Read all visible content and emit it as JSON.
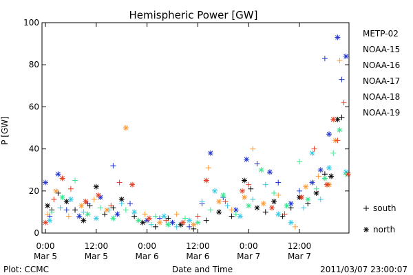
{
  "chart_data": {
    "type": "scatter",
    "title": "Hemispheric Power [GW]",
    "xlabel": "Date and Time",
    "ylabel": "P [GW]",
    "xlim_hours": [
      0,
      72
    ],
    "ylim": [
      0,
      100
    ],
    "y_ticks": [
      0,
      20,
      40,
      60,
      80,
      100
    ],
    "x_ticks": [
      {
        "hours": 0,
        "top": "0:00",
        "bottom": "Mar 5"
      },
      {
        "hours": 12,
        "top": "12:00",
        "bottom": "Mar 5"
      },
      {
        "hours": 24,
        "top": "0:00",
        "bottom": "Mar 6"
      },
      {
        "hours": 36,
        "top": "12:00",
        "bottom": "Mar 6"
      },
      {
        "hours": 48,
        "top": "0:00",
        "bottom": "Mar 7"
      },
      {
        "hours": 60,
        "top": "12:00",
        "bottom": "Mar 7"
      }
    ],
    "grid": false,
    "legend_position": "right",
    "marker_legend": [
      {
        "marker": "+",
        "label": "south"
      },
      {
        "marker": "*",
        "label": "north"
      }
    ],
    "series": [
      {
        "name": "METP-02",
        "color": "#000000",
        "points": [
          {
            "x": 0.5,
            "y": 13,
            "m": "*"
          },
          {
            "x": 1.5,
            "y": 11,
            "m": "+"
          },
          {
            "x": 3,
            "y": 19,
            "m": "+"
          },
          {
            "x": 5,
            "y": 15,
            "m": "*"
          },
          {
            "x": 7,
            "y": 11,
            "m": "+"
          },
          {
            "x": 9,
            "y": 6,
            "m": "*"
          },
          {
            "x": 10.5,
            "y": 13,
            "m": "+"
          },
          {
            "x": 12,
            "y": 22,
            "m": "*"
          },
          {
            "x": 14,
            "y": 9,
            "m": "+"
          },
          {
            "x": 16,
            "y": 12,
            "m": "+"
          },
          {
            "x": 18,
            "y": 16,
            "m": "*"
          },
          {
            "x": 21,
            "y": 8,
            "m": "+"
          },
          {
            "x": 23,
            "y": 5,
            "m": "*"
          },
          {
            "x": 26,
            "y": 3,
            "m": "+"
          },
          {
            "x": 29,
            "y": 7,
            "m": "+"
          },
          {
            "x": 32,
            "y": 4,
            "m": "*"
          },
          {
            "x": 35,
            "y": 2,
            "m": "+"
          },
          {
            "x": 38,
            "y": 6,
            "m": "+"
          },
          {
            "x": 41,
            "y": 10,
            "m": "*"
          },
          {
            "x": 44,
            "y": 8,
            "m": "+"
          },
          {
            "x": 47,
            "y": 25,
            "m": "*"
          },
          {
            "x": 48.5,
            "y": 21,
            "m": "+"
          },
          {
            "x": 50,
            "y": 12,
            "m": "*"
          },
          {
            "x": 52,
            "y": 10,
            "m": "+"
          },
          {
            "x": 54,
            "y": 15,
            "m": "*"
          },
          {
            "x": 56,
            "y": 8,
            "m": "+"
          },
          {
            "x": 58,
            "y": 12,
            "m": "+"
          },
          {
            "x": 60,
            "y": 17,
            "m": "*"
          },
          {
            "x": 62,
            "y": 14,
            "m": "+"
          },
          {
            "x": 64,
            "y": 19,
            "m": "*"
          },
          {
            "x": 66,
            "y": 28,
            "m": "+"
          },
          {
            "x": 67.5,
            "y": 27,
            "m": "*"
          },
          {
            "x": 69,
            "y": 54,
            "m": "*"
          },
          {
            "x": 70,
            "y": 55,
            "m": "+"
          }
        ]
      },
      {
        "name": "NOAA-15",
        "color": "#1f33cc",
        "points": [
          {
            "x": 0,
            "y": 24,
            "m": "*"
          },
          {
            "x": 1,
            "y": 8,
            "m": "+"
          },
          {
            "x": 3,
            "y": 28,
            "m": "*"
          },
          {
            "x": 5,
            "y": 11,
            "m": "+"
          },
          {
            "x": 8,
            "y": 8,
            "m": "*"
          },
          {
            "x": 10,
            "y": 14,
            "m": "+"
          },
          {
            "x": 13,
            "y": 17,
            "m": "*"
          },
          {
            "x": 16,
            "y": 32,
            "m": "+"
          },
          {
            "x": 17,
            "y": 9,
            "m": "*"
          },
          {
            "x": 20,
            "y": 14,
            "m": "+"
          },
          {
            "x": 24,
            "y": 6,
            "m": "*"
          },
          {
            "x": 27,
            "y": 7,
            "m": "+"
          },
          {
            "x": 30,
            "y": 5,
            "m": "*"
          },
          {
            "x": 34,
            "y": 3,
            "m": "+"
          },
          {
            "x": 37,
            "y": 14,
            "m": "+"
          },
          {
            "x": 39,
            "y": 38,
            "m": "*"
          },
          {
            "x": 42,
            "y": 17,
            "m": "+"
          },
          {
            "x": 45,
            "y": 11,
            "m": "*"
          },
          {
            "x": 47.5,
            "y": 35,
            "m": "*"
          },
          {
            "x": 50,
            "y": 33,
            "m": "+"
          },
          {
            "x": 53,
            "y": 29,
            "m": "*"
          },
          {
            "x": 55,
            "y": 24,
            "m": "+"
          },
          {
            "x": 58,
            "y": 14,
            "m": "*"
          },
          {
            "x": 60,
            "y": 20,
            "m": "+"
          },
          {
            "x": 63,
            "y": 24,
            "m": "*"
          },
          {
            "x": 65,
            "y": 30,
            "m": "*"
          },
          {
            "x": 66,
            "y": 83,
            "m": "+"
          },
          {
            "x": 67,
            "y": 47,
            "m": "*"
          },
          {
            "x": 69,
            "y": 93,
            "m": "*"
          },
          {
            "x": 70,
            "y": 73,
            "m": "+"
          },
          {
            "x": 71,
            "y": 84,
            "m": "*"
          }
        ]
      },
      {
        "name": "NOAA-16",
        "color": "#33c8e6",
        "points": [
          {
            "x": 1,
            "y": 6,
            "m": "*"
          },
          {
            "x": 3.5,
            "y": 12,
            "m": "+"
          },
          {
            "x": 6,
            "y": 16,
            "m": "*"
          },
          {
            "x": 9,
            "y": 10,
            "m": "+"
          },
          {
            "x": 12,
            "y": 7,
            "m": "*"
          },
          {
            "x": 15,
            "y": 11,
            "m": "+"
          },
          {
            "x": 18,
            "y": 14,
            "m": "+"
          },
          {
            "x": 21,
            "y": 10,
            "m": "*"
          },
          {
            "x": 25,
            "y": 4,
            "m": "+"
          },
          {
            "x": 28,
            "y": 8,
            "m": "*"
          },
          {
            "x": 31,
            "y": 3,
            "m": "+"
          },
          {
            "x": 34,
            "y": 6,
            "m": "*"
          },
          {
            "x": 37,
            "y": 15,
            "m": "+"
          },
          {
            "x": 40,
            "y": 20,
            "m": "*"
          },
          {
            "x": 43,
            "y": 13,
            "m": "+"
          },
          {
            "x": 46,
            "y": 8,
            "m": "*"
          },
          {
            "x": 49,
            "y": 16,
            "m": "+"
          },
          {
            "x": 52,
            "y": 23,
            "m": "+"
          },
          {
            "x": 55,
            "y": 9,
            "m": "*"
          },
          {
            "x": 58,
            "y": 5,
            "m": "*"
          },
          {
            "x": 61,
            "y": 12,
            "m": "+"
          },
          {
            "x": 63,
            "y": 38,
            "m": "*"
          },
          {
            "x": 65,
            "y": 16,
            "m": "+"
          },
          {
            "x": 67,
            "y": 31,
            "m": "*"
          },
          {
            "x": 71,
            "y": 29,
            "m": "*"
          }
        ]
      },
      {
        "name": "NOAA-17",
        "color": "#33e68c",
        "points": [
          {
            "x": 1.5,
            "y": 10,
            "m": "+"
          },
          {
            "x": 4,
            "y": 17,
            "m": "*"
          },
          {
            "x": 7,
            "y": 25,
            "m": "+"
          },
          {
            "x": 10,
            "y": 9,
            "m": "*"
          },
          {
            "x": 13,
            "y": 12,
            "m": "+"
          },
          {
            "x": 16,
            "y": 7,
            "m": "*"
          },
          {
            "x": 19,
            "y": 11,
            "m": "+"
          },
          {
            "x": 22,
            "y": 6,
            "m": "*"
          },
          {
            "x": 26,
            "y": 8,
            "m": "+"
          },
          {
            "x": 29,
            "y": 4,
            "m": "*"
          },
          {
            "x": 33,
            "y": 7,
            "m": "+"
          },
          {
            "x": 36,
            "y": 5,
            "m": "*"
          },
          {
            "x": 39,
            "y": 11,
            "m": "+"
          },
          {
            "x": 42,
            "y": 18,
            "m": "*"
          },
          {
            "x": 45,
            "y": 9,
            "m": "+"
          },
          {
            "x": 48,
            "y": 13,
            "m": "*"
          },
          {
            "x": 51,
            "y": 30,
            "m": "*"
          },
          {
            "x": 54,
            "y": 19,
            "m": "+"
          },
          {
            "x": 57,
            "y": 13,
            "m": "*"
          },
          {
            "x": 60,
            "y": 34,
            "m": "+"
          },
          {
            "x": 62,
            "y": 16,
            "m": "*"
          },
          {
            "x": 64,
            "y": 21,
            "m": "+"
          },
          {
            "x": 66,
            "y": 26,
            "m": "*"
          },
          {
            "x": 68,
            "y": 38,
            "m": "+"
          },
          {
            "x": 69.5,
            "y": 49,
            "m": "*"
          },
          {
            "x": 71,
            "y": 28,
            "m": "+"
          }
        ]
      },
      {
        "name": "NOAA-18",
        "color": "#ff9933",
        "points": [
          {
            "x": 0.5,
            "y": 9,
            "m": "+"
          },
          {
            "x": 2.5,
            "y": 20,
            "m": "*"
          },
          {
            "x": 5.5,
            "y": 8,
            "m": "+"
          },
          {
            "x": 8.5,
            "y": 13,
            "m": "*"
          },
          {
            "x": 11.5,
            "y": 16,
            "m": "+"
          },
          {
            "x": 14.5,
            "y": 11,
            "m": "*"
          },
          {
            "x": 19,
            "y": 50,
            "m": "*"
          },
          {
            "x": 23.5,
            "y": 9,
            "m": "+"
          },
          {
            "x": 27,
            "y": 5,
            "m": "*"
          },
          {
            "x": 31,
            "y": 9,
            "m": "+"
          },
          {
            "x": 35,
            "y": 4,
            "m": "*"
          },
          {
            "x": 38.5,
            "y": 31,
            "m": "+"
          },
          {
            "x": 41,
            "y": 15,
            "m": "*"
          },
          {
            "x": 44,
            "y": 11,
            "m": "+"
          },
          {
            "x": 47,
            "y": 17,
            "m": "*"
          },
          {
            "x": 49,
            "y": 40,
            "m": "+"
          },
          {
            "x": 51.5,
            "y": 14,
            "m": "*"
          },
          {
            "x": 55,
            "y": 18,
            "m": "+"
          },
          {
            "x": 59,
            "y": 3,
            "m": "+"
          },
          {
            "x": 61.5,
            "y": 22,
            "m": "*"
          },
          {
            "x": 64.5,
            "y": 27,
            "m": "+"
          },
          {
            "x": 67,
            "y": 23,
            "m": "*"
          },
          {
            "x": 68.5,
            "y": 44,
            "m": "*"
          },
          {
            "x": 69.5,
            "y": 82,
            "m": "+"
          }
        ]
      },
      {
        "name": "NOAA-19",
        "color": "#e63a1f",
        "points": [
          {
            "x": 0,
            "y": 5,
            "m": "*"
          },
          {
            "x": 2,
            "y": 16,
            "m": "+"
          },
          {
            "x": 4,
            "y": 26,
            "m": "*"
          },
          {
            "x": 6,
            "y": 21,
            "m": "+"
          },
          {
            "x": 9.5,
            "y": 15,
            "m": "*"
          },
          {
            "x": 12.5,
            "y": 18,
            "m": "*"
          },
          {
            "x": 15.5,
            "y": 13,
            "m": "+"
          },
          {
            "x": 17.5,
            "y": 24,
            "m": "+"
          },
          {
            "x": 20.5,
            "y": 23,
            "m": "*"
          },
          {
            "x": 24.5,
            "y": 7,
            "m": "*"
          },
          {
            "x": 28.5,
            "y": 6,
            "m": "+"
          },
          {
            "x": 32.5,
            "y": 5,
            "m": "*"
          },
          {
            "x": 36,
            "y": 8,
            "m": "+"
          },
          {
            "x": 38,
            "y": 25,
            "m": "*"
          },
          {
            "x": 42.5,
            "y": 15,
            "m": "+"
          },
          {
            "x": 46.5,
            "y": 20,
            "m": "*"
          },
          {
            "x": 48,
            "y": 23,
            "m": "+"
          },
          {
            "x": 53.5,
            "y": 12,
            "m": "*"
          },
          {
            "x": 56.5,
            "y": 9,
            "m": "+"
          },
          {
            "x": 60.5,
            "y": 17,
            "m": "*"
          },
          {
            "x": 63.5,
            "y": 40,
            "m": "+"
          },
          {
            "x": 66.5,
            "y": 23,
            "m": "*"
          },
          {
            "x": 68,
            "y": 54,
            "m": "*"
          },
          {
            "x": 69,
            "y": 44,
            "m": "+"
          },
          {
            "x": 70.5,
            "y": 62,
            "m": "+"
          },
          {
            "x": 71.5,
            "y": 28,
            "m": "*"
          }
        ]
      }
    ]
  },
  "footer": {
    "left": "Plot: CCMC",
    "right": "2011/03/07 23:00:07"
  }
}
